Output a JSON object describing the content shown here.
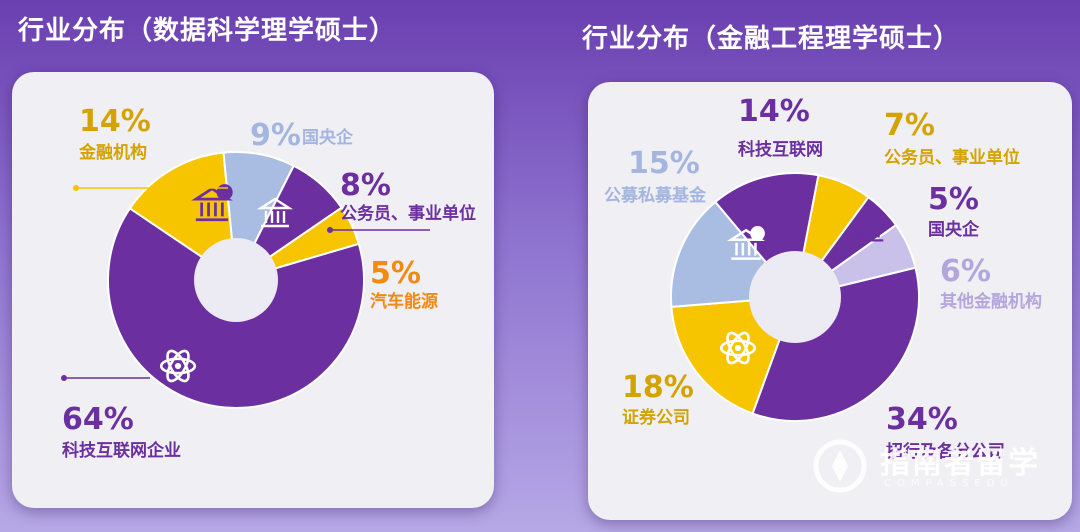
{
  "chart_data": [
    {
      "type": "pie",
      "title": "行业分布（数据科学理学硕士）",
      "slices": [
        {
          "label": "金融机构",
          "value": 14,
          "value_label": "14%",
          "color": "#f7c400",
          "label_color": "#d4a300"
        },
        {
          "label": "国央企",
          "value": 9,
          "value_label": "9%",
          "color": "#a9bde3",
          "label_color": "#a4b6df"
        },
        {
          "label": "公务员、事业单位",
          "value": 8,
          "value_label": "8%",
          "color": "#6b2fa0",
          "label_color": "#6b2fa0"
        },
        {
          "label": "汽车能源",
          "value": 5,
          "value_label": "5%",
          "color": "#f7c400",
          "label_color": "#f08a10"
        },
        {
          "label": "科技互联网企业",
          "value": 64,
          "value_label": "64%",
          "color": "#6b2fa0",
          "label_color": "#6b2fa0"
        }
      ]
    },
    {
      "type": "pie",
      "title": "行业分布（金融工程理学硕士）",
      "slices": [
        {
          "label": "科技互联网",
          "value": 14,
          "value_label": "14%",
          "color": "#6b2fa0",
          "label_color": "#6b2fa0"
        },
        {
          "label": "公务员、事业单位",
          "value": 7,
          "value_label": "7%",
          "color": "#f7c400",
          "label_color": "#d4a300"
        },
        {
          "label": "国央企",
          "value": 5,
          "value_label": "5%",
          "color": "#6b2fa0",
          "label_color": "#6b2fa0"
        },
        {
          "label": "其他金融机构",
          "value": 6,
          "value_label": "6%",
          "color": "#c9c1ea",
          "label_color": "#b3a6dc"
        },
        {
          "label": "招行及各分公司",
          "value": 34,
          "value_label": "34%",
          "color": "#6b2fa0",
          "label_color": "#6b2fa0"
        },
        {
          "label": "证券公司",
          "value": 18,
          "value_label": "18%",
          "color": "#f7c400",
          "label_color": "#d4a300"
        },
        {
          "label": "公募私募基金",
          "value": 15,
          "value_label": "15%",
          "color": "#a9bde3",
          "label_color": "#a4b6df"
        }
      ]
    }
  ],
  "watermark": {
    "text": "指南者留学",
    "sub": "COMPASSEDU"
  },
  "icons": [
    "bank-icon",
    "atom-icon"
  ]
}
